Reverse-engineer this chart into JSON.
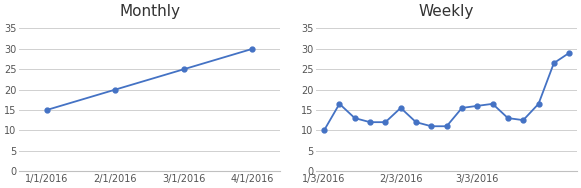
{
  "monthly": {
    "title": "Monthly",
    "x_labels": [
      "1/1/2016",
      "2/1/2016",
      "3/1/2016",
      "4/1/2016"
    ],
    "x_values": [
      0,
      1,
      2,
      3
    ],
    "y_values": [
      15,
      20,
      25,
      30
    ],
    "ylim": [
      0,
      37
    ],
    "yticks": [
      0,
      5,
      10,
      15,
      20,
      25,
      30,
      35
    ]
  },
  "weekly": {
    "title": "Weekly",
    "x_labels": [
      "1/3/2016",
      "2/3/2016",
      "3/3/2016"
    ],
    "x_tick_positions": [
      0,
      5,
      10
    ],
    "y_values": [
      10,
      16.5,
      13,
      12,
      12,
      15.5,
      12,
      11,
      11,
      15.5,
      16,
      16.5,
      13,
      12.5,
      16.5,
      26.5,
      29
    ],
    "ylim": [
      0,
      37
    ],
    "yticks": [
      0,
      5,
      10,
      15,
      20,
      25,
      30,
      35
    ]
  },
  "line_color": "#4472C4",
  "marker": "o",
  "marker_size": 3.5,
  "bg_color": "#ffffff",
  "grid_color": "#d0d0d0",
  "title_fontsize": 11,
  "tick_fontsize": 7,
  "spine_color": "#c0c0c0"
}
